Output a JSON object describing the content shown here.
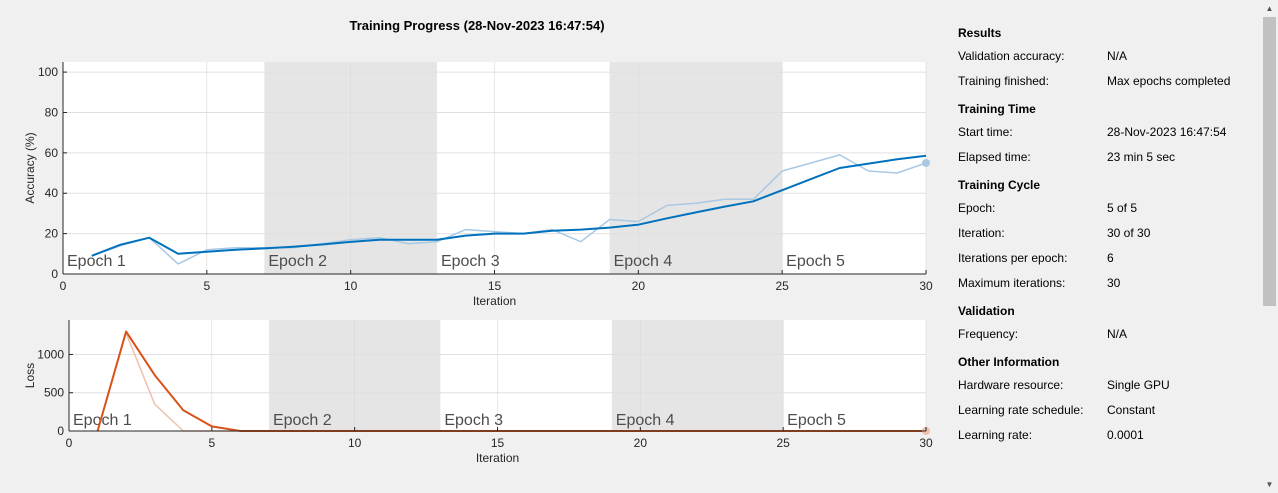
{
  "title": "Training Progress (28-Nov-2023 16:47:54)",
  "colors": {
    "accuracy": "#0072bd",
    "accuracy_raw": "#a9c8e3",
    "loss": "#d95319",
    "loss_raw": "#eec0ad",
    "epoch_band": "#e5e5e5",
    "grid": "#e0e0e0",
    "axis": "#262626",
    "epoch_text": "#4d4d4d"
  },
  "chart_data": [
    {
      "type": "line",
      "xlabel": "Iteration",
      "ylabel": "Accuracy (%)",
      "xlim": [
        0,
        30
      ],
      "ylim": [
        0,
        105
      ],
      "xticks": [
        0,
        5,
        10,
        15,
        20,
        25,
        30
      ],
      "yticks": [
        0,
        20,
        40,
        60,
        80,
        100
      ],
      "grid": true,
      "epochs": [
        {
          "label": "Epoch 1",
          "start": 0,
          "end": 7
        },
        {
          "label": "Epoch 2",
          "start": 7,
          "end": 13
        },
        {
          "label": "Epoch 3",
          "start": 13,
          "end": 19
        },
        {
          "label": "Epoch 4",
          "start": 19,
          "end": 25
        },
        {
          "label": "Epoch 5",
          "start": 25,
          "end": 30
        }
      ],
      "series": [
        {
          "role": "raw",
          "x": [
            1,
            2,
            3,
            4,
            5,
            6,
            7,
            8,
            9,
            10,
            11,
            12,
            13,
            14,
            15,
            16,
            17,
            18,
            19,
            20,
            21,
            22,
            23,
            24,
            25,
            26,
            27,
            28,
            29,
            30
          ],
          "values": [
            9,
            14,
            18,
            5,
            12,
            13,
            13,
            13,
            15,
            17,
            18,
            15,
            16,
            22,
            21,
            20,
            22,
            16,
            27,
            26,
            34,
            35,
            37,
            37,
            51,
            55,
            59,
            51,
            50,
            55
          ]
        },
        {
          "role": "smoothed",
          "x": [
            1,
            2,
            3,
            4,
            5,
            6,
            7,
            8,
            9,
            10,
            11,
            12,
            13,
            14,
            15,
            16,
            17,
            18,
            19,
            20,
            21,
            22,
            23,
            24,
            25,
            26,
            27,
            28,
            29,
            30
          ],
          "values": [
            9,
            14.5,
            18,
            10,
            11,
            12,
            12.7,
            13.5,
            14.6,
            15.9,
            17,
            17,
            17,
            19,
            20,
            20,
            21.4,
            22,
            23,
            24.4,
            27.6,
            30.5,
            33.4,
            36,
            41.5,
            47,
            52.5,
            54.7,
            56.8,
            58.6
          ]
        }
      ],
      "final_marker": {
        "x": 30,
        "y": 55
      }
    },
    {
      "type": "line",
      "xlabel": "Iteration",
      "ylabel": "Loss",
      "xlim": [
        0,
        30
      ],
      "ylim": [
        0,
        1450
      ],
      "xticks": [
        0,
        5,
        10,
        15,
        20,
        25,
        30
      ],
      "yticks": [
        0,
        500,
        1000
      ],
      "grid": true,
      "epochs": [
        {
          "label": "Epoch 1",
          "start": 0,
          "end": 7
        },
        {
          "label": "Epoch 2",
          "start": 7,
          "end": 13
        },
        {
          "label": "Epoch 3",
          "start": 13,
          "end": 19
        },
        {
          "label": "Epoch 4",
          "start": 19,
          "end": 25
        },
        {
          "label": "Epoch 5",
          "start": 25,
          "end": 30
        }
      ],
      "series": [
        {
          "role": "raw",
          "x": [
            1,
            2,
            3,
            4,
            5,
            6,
            7,
            8,
            9,
            10,
            11,
            12,
            13,
            14,
            15,
            16,
            17,
            18,
            19,
            20,
            21,
            22,
            23,
            24,
            25,
            26,
            27,
            28,
            29,
            30
          ],
          "values": [
            0,
            1280,
            350,
            0,
            0,
            0,
            0,
            0,
            0,
            0,
            0,
            0,
            0,
            0,
            0,
            0,
            0,
            0,
            0,
            0,
            0,
            0,
            0,
            0,
            0,
            0,
            0,
            0,
            0,
            0
          ]
        },
        {
          "role": "smoothed",
          "x": [
            1,
            2,
            3,
            4,
            5,
            6,
            7,
            8,
            9,
            10,
            11,
            12,
            13,
            14,
            15,
            16,
            17,
            18,
            19,
            20,
            21,
            22,
            23,
            24,
            25,
            26,
            27,
            28,
            29,
            30
          ],
          "values": [
            0,
            1300,
            730,
            270,
            60,
            0,
            0,
            0,
            0,
            0,
            0,
            0,
            0,
            0,
            0,
            0,
            0,
            0,
            0,
            0,
            0,
            0,
            0,
            0,
            0,
            0,
            0,
            0,
            0,
            0
          ]
        }
      ],
      "final_marker": {
        "x": 30,
        "y": 0
      }
    }
  ],
  "info": {
    "results_head": "Results",
    "validation_accuracy_label": "Validation accuracy:",
    "validation_accuracy_value": "N/A",
    "training_finished_label": "Training finished:",
    "training_finished_value": "Max epochs completed",
    "training_time_head": "Training Time",
    "start_time_label": "Start time:",
    "start_time_value": "28-Nov-2023 16:47:54",
    "elapsed_time_label": "Elapsed time:",
    "elapsed_time_value": "23 min 5 sec",
    "training_cycle_head": "Training Cycle",
    "epoch_label": "Epoch:",
    "epoch_value": "5 of 5",
    "iteration_label": "Iteration:",
    "iteration_value": "30 of 30",
    "iterations_per_epoch_label": "Iterations per epoch:",
    "iterations_per_epoch_value": "6",
    "max_iterations_label": "Maximum iterations:",
    "max_iterations_value": "30",
    "validation_head": "Validation",
    "frequency_label": "Frequency:",
    "frequency_value": "N/A",
    "other_info_head": "Other Information",
    "hardware_label": "Hardware resource:",
    "hardware_value": "Single GPU",
    "lr_schedule_label": "Learning rate schedule:",
    "lr_schedule_value": "Constant",
    "lr_label": "Learning rate:",
    "lr_value": "0.0001"
  }
}
